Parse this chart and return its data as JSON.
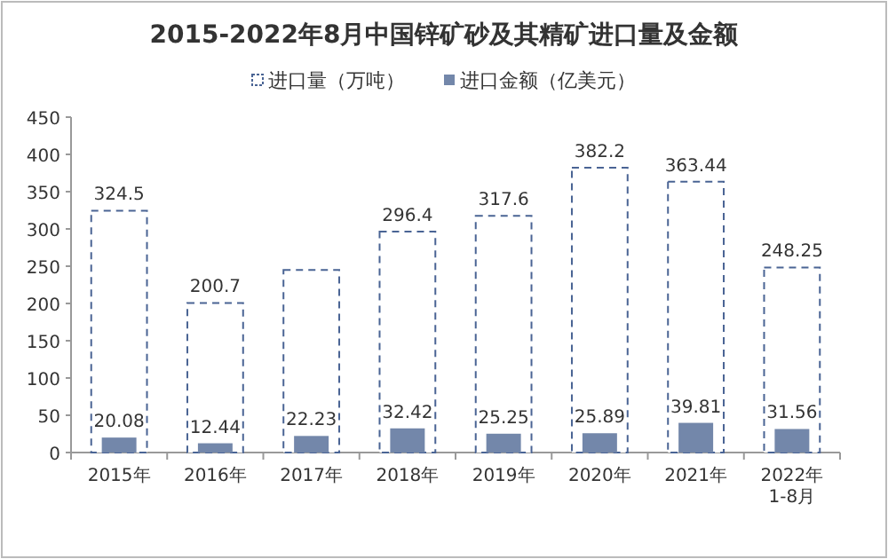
{
  "chart_data": {
    "type": "bar",
    "title": "2015-2022年8月中国锌矿砂及其精矿进口量及金额",
    "categories": [
      "2015年",
      "2016年",
      "2017年",
      "2018年",
      "2019年",
      "2020年",
      "2021年",
      "2022年\n1-8月"
    ],
    "series": [
      {
        "name": "进口量（万吨）",
        "color": "#4a6494",
        "line_style": "dashed",
        "values": [
          324.5,
          200.7,
          245,
          296.4,
          317.6,
          382.2,
          363.44,
          248.25
        ],
        "value_labels": [
          "324.5",
          "200.7",
          null,
          "296.4",
          "317.6",
          "382.2",
          "363.44",
          "248.25"
        ]
      },
      {
        "name": "进口金额（亿美元）",
        "color": "#7387aa",
        "values": [
          20.08,
          12.44,
          22.23,
          32.42,
          25.25,
          25.89,
          39.81,
          31.56
        ],
        "value_labels": [
          "20.08",
          "12.44",
          "22.23",
          "32.42",
          "25.25",
          "25.89",
          "39.81",
          "31.56"
        ]
      }
    ],
    "ylim": [
      0,
      450
    ],
    "yticks": [
      0,
      50,
      100,
      150,
      200,
      250,
      300,
      350,
      400,
      450
    ],
    "grid": false,
    "legend": "top"
  }
}
